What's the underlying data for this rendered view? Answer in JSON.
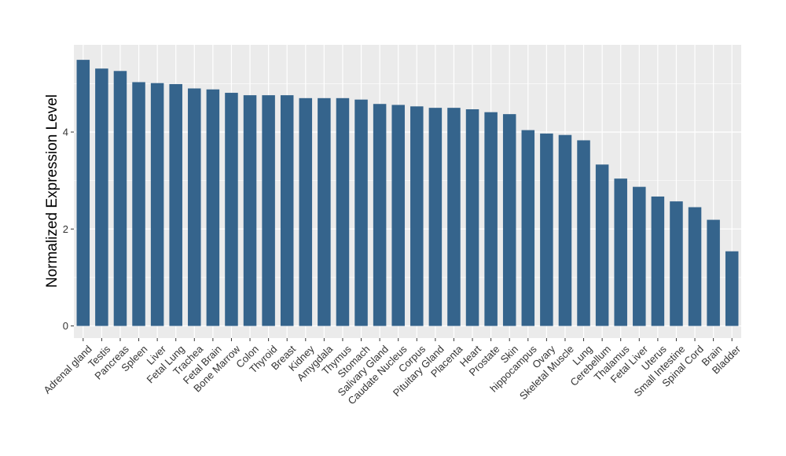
{
  "chart_data": {
    "type": "bar",
    "title": "",
    "xlabel": "",
    "ylabel": "Normalized Expression Level",
    "ylim": [
      -0.25,
      5.8
    ],
    "yticks": [
      0,
      2,
      4
    ],
    "grid": true,
    "bar_color": "#35648c",
    "panel_color": "#ebebeb",
    "categories": [
      "Adrenal gland",
      "Testis",
      "Pancreas",
      "Spleen",
      "Liver",
      "Fetal Lung",
      "Trachea",
      "Fetal Brain",
      "Bone Marrow",
      "Colon",
      "Thyroid",
      "Breast",
      "Kidney",
      "Amygdala",
      "Thymus",
      "Stomach",
      "Salivary Gland",
      "Caudate Nucleus",
      "Corpus",
      "Pituitary Gland",
      "Placenta",
      "Heart",
      "Prostate",
      "Skin",
      "hippocampus",
      "Ovary",
      "Skeletal Muscle",
      "Lung",
      "Cerebellum",
      "Thalamus",
      "Fetal Liver",
      "Uterus",
      "Small Intestine",
      "Spinal Cord",
      "Brain",
      "Bladder"
    ],
    "values": [
      5.49,
      5.31,
      5.26,
      5.03,
      5.01,
      4.99,
      4.9,
      4.88,
      4.81,
      4.76,
      4.76,
      4.76,
      4.7,
      4.7,
      4.7,
      4.67,
      4.58,
      4.56,
      4.53,
      4.5,
      4.5,
      4.47,
      4.41,
      4.37,
      4.04,
      3.97,
      3.94,
      3.83,
      3.33,
      3.04,
      2.87,
      2.67,
      2.57,
      2.45,
      2.19,
      1.54
    ]
  }
}
